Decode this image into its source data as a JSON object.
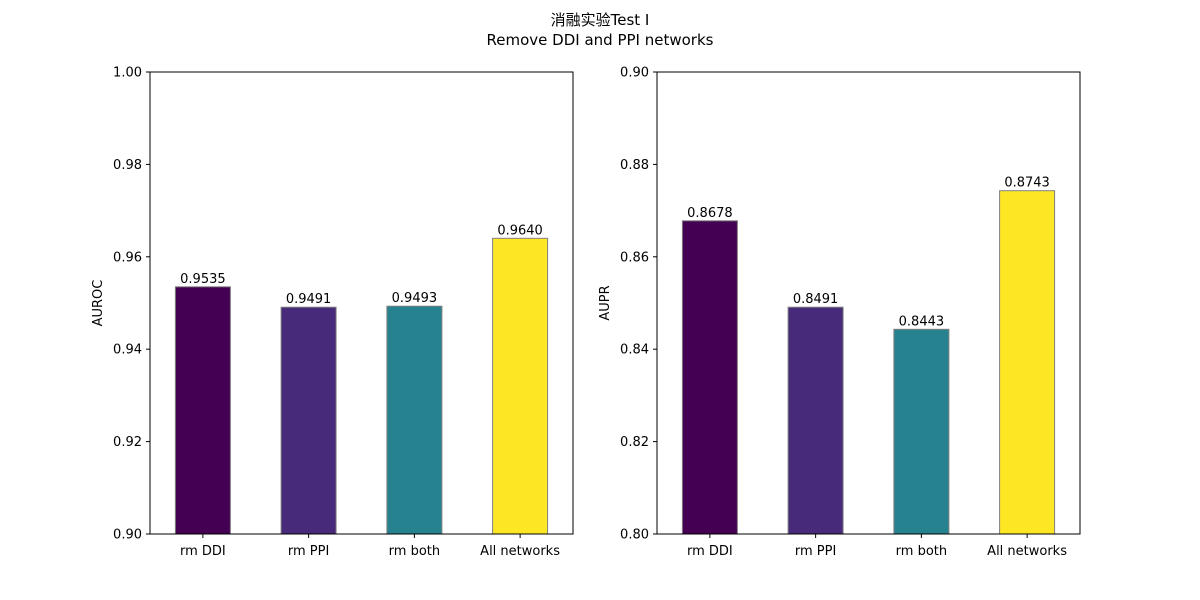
{
  "title_line1": "消融实验Test I",
  "title_line2": "Remove DDI and PPI networks",
  "chart_data": [
    {
      "type": "bar",
      "categories": [
        "rm DDI",
        "rm PPI",
        "rm both",
        "All networks"
      ],
      "values": [
        0.9535,
        0.9491,
        0.9493,
        0.964
      ],
      "value_labels": [
        "0.9535",
        "0.9491",
        "0.9493",
        "0.9640"
      ],
      "colors": [
        "#440154",
        "#472a7a",
        "#26828e",
        "#fde725"
      ],
      "ylabel": "AUROC",
      "ylim": [
        0.9,
        1.0
      ],
      "yticks": [
        0.9,
        0.92,
        0.94,
        0.96,
        0.98,
        1.0
      ],
      "ytick_labels": [
        "0.90",
        "0.92",
        "0.94",
        "0.96",
        "0.98",
        "1.00"
      ],
      "grid": false
    },
    {
      "type": "bar",
      "categories": [
        "rm DDI",
        "rm PPI",
        "rm both",
        "All networks"
      ],
      "values": [
        0.8678,
        0.8491,
        0.8443,
        0.8743
      ],
      "value_labels": [
        "0.8678",
        "0.8491",
        "0.8443",
        "0.8743"
      ],
      "colors": [
        "#440154",
        "#472a7a",
        "#26828e",
        "#fde725"
      ],
      "ylabel": "AUPR",
      "ylim": [
        0.8,
        0.9
      ],
      "yticks": [
        0.8,
        0.82,
        0.84,
        0.86,
        0.88,
        0.9
      ],
      "ytick_labels": [
        "0.80",
        "0.82",
        "0.84",
        "0.86",
        "0.88",
        "0.90"
      ],
      "grid": false
    }
  ]
}
